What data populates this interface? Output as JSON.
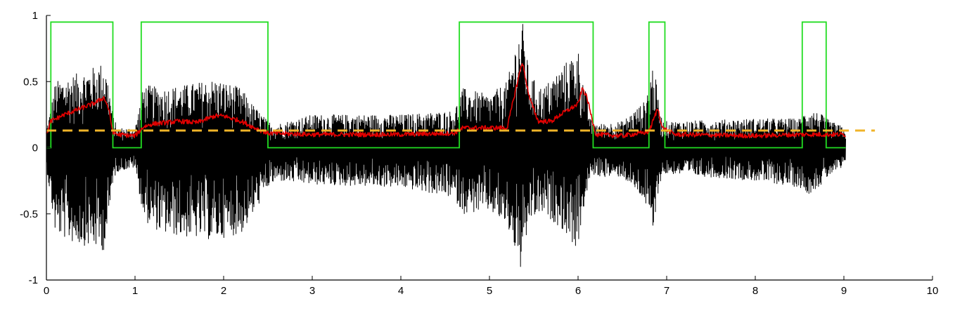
{
  "chart_data": {
    "type": "line",
    "title": "",
    "xlabel": "",
    "ylabel": "",
    "xlim": [
      0,
      10
    ],
    "ylim": [
      -1,
      1
    ],
    "x_ticks": [
      0,
      1,
      2,
      3,
      4,
      5,
      6,
      7,
      8,
      9,
      10
    ],
    "x_tick_labels": [
      "0",
      "1",
      "2",
      "3",
      "4",
      "5",
      "6",
      "7",
      "8",
      "9",
      "10"
    ],
    "y_ticks": [
      -1,
      -0.5,
      0,
      0.5,
      1
    ],
    "y_tick_labels": [
      "-1",
      "-0.5",
      "0",
      "0.5",
      "1"
    ],
    "grid": false,
    "legend": "none",
    "signal_extent": [
      0,
      9.02
    ],
    "series": [
      {
        "role": "waveform",
        "color": "#000000",
        "x_range": [
          0,
          9.02
        ],
        "envelope": {
          "x": [
            0,
            0.05,
            0.1,
            0.3,
            0.5,
            0.65,
            0.7,
            0.75,
            0.8,
            1.0,
            1.1,
            1.3,
            1.6,
            1.9,
            2.0,
            2.2,
            2.3,
            2.5,
            2.6,
            3.0,
            4.0,
            4.6,
            4.7,
            5.0,
            5.2,
            5.3,
            5.37,
            5.45,
            5.6,
            5.8,
            6.0,
            6.05,
            6.15,
            6.25,
            6.5,
            6.75,
            6.85,
            6.9,
            6.95,
            7.1,
            8.0,
            8.5,
            8.6,
            8.75,
            8.85,
            9.02
          ],
          "upper": [
            0.15,
            0.3,
            0.5,
            0.55,
            0.6,
            0.65,
            0.5,
            0.25,
            0.15,
            0.15,
            0.48,
            0.45,
            0.48,
            0.52,
            0.5,
            0.45,
            0.35,
            0.2,
            0.18,
            0.25,
            0.25,
            0.28,
            0.45,
            0.4,
            0.5,
            0.8,
            0.97,
            0.55,
            0.45,
            0.6,
            0.75,
            0.55,
            0.2,
            0.18,
            0.2,
            0.35,
            0.65,
            0.4,
            0.2,
            0.2,
            0.22,
            0.22,
            0.3,
            0.25,
            0.2,
            0.15
          ],
          "lower": [
            -0.15,
            -0.4,
            -0.65,
            -0.72,
            -0.75,
            -0.78,
            -0.6,
            -0.25,
            -0.18,
            -0.15,
            -0.55,
            -0.65,
            -0.68,
            -0.7,
            -0.68,
            -0.65,
            -0.55,
            -0.3,
            -0.25,
            -0.28,
            -0.3,
            -0.38,
            -0.5,
            -0.48,
            -0.6,
            -0.8,
            -0.98,
            -0.55,
            -0.5,
            -0.6,
            -0.78,
            -0.5,
            -0.2,
            -0.22,
            -0.22,
            -0.4,
            -0.68,
            -0.35,
            -0.2,
            -0.2,
            -0.25,
            -0.3,
            -0.35,
            -0.28,
            -0.2,
            -0.15
          ]
        }
      },
      {
        "role": "energy",
        "color": "#e00000",
        "x": [
          0,
          0.05,
          0.2,
          0.4,
          0.55,
          0.65,
          0.7,
          0.75,
          0.8,
          1.0,
          1.1,
          1.2,
          1.5,
          1.7,
          1.9,
          2.0,
          2.2,
          2.35,
          2.5,
          3.0,
          4.0,
          4.6,
          4.7,
          5.0,
          5.2,
          5.3,
          5.37,
          5.45,
          5.55,
          5.7,
          5.8,
          6.0,
          6.05,
          6.1,
          6.2,
          6.5,
          6.8,
          6.9,
          6.95,
          7.1,
          8.0,
          8.5,
          8.7,
          9.02
        ],
        "y": [
          0.1,
          0.2,
          0.25,
          0.3,
          0.34,
          0.38,
          0.3,
          0.12,
          0.1,
          0.09,
          0.16,
          0.18,
          0.2,
          0.19,
          0.24,
          0.24,
          0.2,
          0.15,
          0.11,
          0.1,
          0.1,
          0.11,
          0.15,
          0.15,
          0.15,
          0.45,
          0.65,
          0.38,
          0.2,
          0.2,
          0.25,
          0.33,
          0.45,
          0.38,
          0.1,
          0.09,
          0.12,
          0.3,
          0.15,
          0.1,
          0.09,
          0.1,
          0.1,
          0.1
        ]
      },
      {
        "role": "voice-activity",
        "color": "#22dd22",
        "x": [
          0,
          0.05,
          0.05,
          0.75,
          0.75,
          1.07,
          1.07,
          2.5,
          2.5,
          4.66,
          4.66,
          6.17,
          6.17,
          6.8,
          6.8,
          6.98,
          6.98,
          8.53,
          8.53,
          8.8,
          8.8,
          9.02
        ],
        "y": [
          0,
          0,
          0.95,
          0.95,
          0,
          0,
          0.95,
          0.95,
          0,
          0,
          0.95,
          0.95,
          0,
          0,
          0.95,
          0.95,
          0,
          0,
          0.95,
          0.95,
          0,
          0
        ]
      },
      {
        "role": "threshold",
        "color": "#f0b429",
        "style": "dashed",
        "x": [
          0,
          9.35
        ],
        "y": [
          0.13,
          0.13
        ]
      }
    ]
  }
}
